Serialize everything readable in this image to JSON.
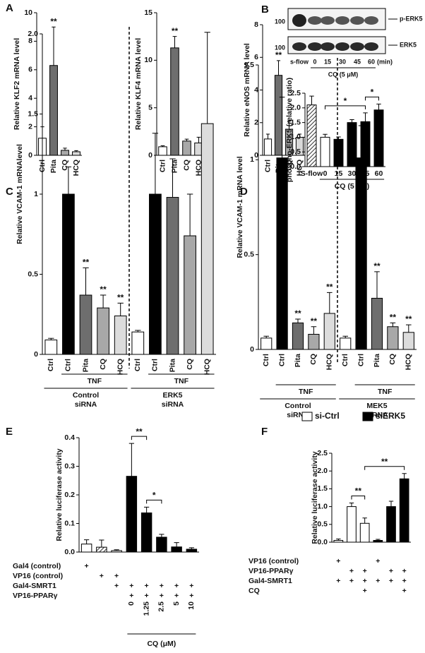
{
  "chart_data": [
    {
      "type": "bar",
      "panel": "A",
      "ylabel": "Relative KLF2 mRNA level",
      "categories": [
        "Ctrl",
        "Pita",
        "CQ",
        "HCQ"
      ],
      "values": [
        1.2,
        6.3,
        0.35,
        0.25
      ],
      "errors": [
        0.8,
        2.7,
        0.15,
        0.08
      ],
      "colors": [
        "#ffffff",
        "#6e6e6e",
        "#a8a8a8",
        "#d9d9d9"
      ],
      "stars": [
        null,
        "**",
        null,
        null
      ],
      "ylim": [
        0,
        10
      ],
      "yticks": [
        0,
        2,
        4,
        6,
        8,
        10
      ]
    },
    {
      "type": "bar",
      "ylabel": "Relative KLF4 mRNA  level",
      "categories": [
        "Ctrl",
        "Pita",
        "CQ",
        "HCQ"
      ],
      "values": [
        0.9,
        11.3,
        1.5,
        1.3
      ],
      "errors": [
        0.1,
        1.2,
        0.2,
        0.6
      ],
      "colors": [
        "#ffffff",
        "#6e6e6e",
        "#a8a8a8",
        "#d9d9d9"
      ],
      "stars": [
        null,
        "**",
        null,
        null
      ],
      "ylim": [
        0,
        15
      ],
      "yticks": [
        0,
        5,
        10,
        15
      ]
    },
    {
      "type": "bar",
      "ylabel": "Relative eNOS mRNA  level",
      "categories": [
        "Ctrl",
        "Pita",
        "CQ",
        "HCQ"
      ],
      "values": [
        1.0,
        4.9,
        1.6,
        1.1
      ],
      "errors": [
        0.3,
        0.9,
        0.5,
        0.2
      ],
      "colors": [
        "#ffffff",
        "#6e6e6e",
        "#a8a8a8",
        "#d9d9d9"
      ],
      "stars": [
        null,
        "**",
        null,
        null
      ],
      "ylim": [
        0,
        8
      ],
      "yticks": [
        0,
        2,
        4,
        6,
        8
      ]
    },
    {
      "type": "bar",
      "panel": "B",
      "ylabel": "phospho-ERK5 (relative ratio)",
      "categories": [
        "S-flow",
        "0",
        "15",
        "30",
        "45",
        "60"
      ],
      "values": [
        2.1,
        1.0,
        0.93,
        1.5,
        1.53,
        1.93
      ],
      "errors": [
        0.3,
        0.1,
        0.08,
        0.1,
        0.3,
        0.2
      ],
      "colors": [
        "#ffffff",
        "#ffffff",
        "#000000",
        "#000000",
        "#000000",
        "#000000"
      ],
      "hatched": [
        0
      ],
      "ylim": [
        0,
        2.5
      ],
      "yticks": [
        {
          "value": 0,
          "label": "0.0"
        },
        0.5,
        {
          "value": 1,
          "label": "1.0"
        },
        1.5,
        {
          "value": 2,
          "label": "2.0"
        },
        2.5
      ],
      "brackets": [
        {
          "from": 1,
          "to": 4,
          "label": "*"
        },
        {
          "from": 4,
          "to": 5,
          "label": "*"
        }
      ],
      "groups": [
        {
          "text": [
            "CQ (5 μM)"
          ],
          "from": 1,
          "to": 5,
          "level": 0
        }
      ],
      "blot": {
        "bands": [
          "p-ERK5",
          "ERK5"
        ],
        "markers": [
          "100",
          "100"
        ],
        "lanes": [
          "s-flow",
          "0",
          "15",
          "30",
          "45",
          "60",
          "(min)"
        ],
        "treatment": "CQ (5 μM)"
      }
    },
    {
      "type": "bar",
      "panel": "C",
      "ylabel": "Relative VCAM-1 mRNAlevel",
      "categories": [
        "Ctrl",
        "Ctrl",
        "Pita",
        "CQ",
        "HCQ",
        "Ctrl",
        "Ctrl",
        "Pita",
        "CQ",
        "HCQ"
      ],
      "values": [
        0.09,
        1.0,
        0.37,
        0.29,
        0.24,
        0.14,
        1.0,
        0.98,
        0.74,
        1.44
      ],
      "errors": [
        0.01,
        0.17,
        0.17,
        0.08,
        0.08,
        0.01,
        0.38,
        0.24,
        0.26,
        0.57
      ],
      "colors": [
        "#ffffff",
        "#000000",
        "#6e6e6e",
        "#a8a8a8",
        "#dcdcdc",
        "#ffffff",
        "#000000",
        "#6e6e6e",
        "#a8a8a8",
        "#dcdcdc"
      ],
      "stars": [
        null,
        null,
        "**",
        "**",
        "**",
        null,
        null,
        null,
        null,
        null
      ],
      "ylim": [
        0,
        2
      ],
      "yticks": [
        0,
        0.5,
        1,
        1.5,
        {
          "value": 2,
          "label": "2.0"
        }
      ],
      "groups": [
        {
          "text": [
            "TNF"
          ],
          "from": 1,
          "to": 4,
          "level": 0
        },
        {
          "text": [
            "Control",
            "siRNA"
          ],
          "from": 0,
          "to": 4,
          "level": 1
        },
        {
          "text": [
            "TNF"
          ],
          "from": 6,
          "to": 9,
          "level": 0
        },
        {
          "text": [
            "ERK5",
            "siRNA"
          ],
          "from": 5,
          "to": 9,
          "level": 1
        }
      ]
    },
    {
      "type": "bar",
      "panel": "D",
      "ylabel": "Relative VCAM-1 mRNA level",
      "categories": [
        "Ctrl",
        "Ctrl",
        "Pita",
        "CQ",
        "HCQ",
        "Ctrl",
        "Ctrl",
        "Pita",
        "CQ",
        "HCQ"
      ],
      "values": [
        0.06,
        1.01,
        0.14,
        0.08,
        0.19,
        0.06,
        1.01,
        0.27,
        0.12,
        0.09
      ],
      "errors": [
        0.01,
        0.32,
        0.02,
        0.04,
        0.11,
        0.01,
        0.17,
        0.14,
        0.02,
        0.04
      ],
      "colors": [
        "#ffffff",
        "#000000",
        "#6e6e6e",
        "#a8a8a8",
        "#dcdcdc",
        "#ffffff",
        "#000000",
        "#6e6e6e",
        "#a8a8a8",
        "#dcdcdc"
      ],
      "stars": [
        null,
        null,
        "**",
        "**",
        "**",
        null,
        null,
        "**",
        "**",
        "**"
      ],
      "ylim": [
        0,
        1.5
      ],
      "yticks": [
        0,
        0.5,
        1,
        1.5
      ],
      "groups": [
        {
          "text": [
            "TNF"
          ],
          "from": 1,
          "to": 4,
          "level": 0
        },
        {
          "text": [
            "Control",
            "siRNA"
          ],
          "from": 0,
          "to": 4,
          "level": 1
        },
        {
          "text": [
            "TNF"
          ],
          "from": 6,
          "to": 9,
          "level": 0
        },
        {
          "text": [
            "MEK5",
            "siRNA"
          ],
          "from": 5,
          "to": 9,
          "level": 1
        }
      ]
    },
    {
      "type": "bar",
      "panel": "E",
      "ylabel": "Relative luciferase activity",
      "values": [
        0.028,
        0.017,
        0.005,
        0.265,
        0.137,
        0.052,
        0.018,
        0.01
      ],
      "errors": [
        0.015,
        0.025,
        0.003,
        0.115,
        0.02,
        0.01,
        0.015,
        0.005
      ],
      "colors": [
        "#ffffff",
        "#ffffff",
        "#ffffff",
        "#000000",
        "#000000",
        "#000000",
        "#000000",
        "#000000"
      ],
      "hatched": [
        1
      ],
      "ylim": [
        0,
        0.4
      ],
      "yticks": [
        {
          "value": 0,
          "label": "0.0"
        },
        0.1,
        0.2,
        0.3,
        0.4
      ],
      "brackets": [
        {
          "from": 3,
          "to": 4,
          "label": "**"
        },
        {
          "from": 4,
          "to": 5,
          "label": "*"
        }
      ],
      "conditions": [
        {
          "label": "Gal4 (control)",
          "marks": [
            "+",
            null,
            null,
            null,
            null,
            null,
            null,
            null
          ]
        },
        {
          "label": "VP16 (control)",
          "marks": [
            null,
            "+",
            "+",
            null,
            null,
            null,
            null,
            null
          ]
        },
        {
          "label": "Gal4-SMRT1",
          "marks": [
            null,
            null,
            "+",
            "+",
            "+",
            "+",
            "+",
            "+"
          ]
        },
        {
          "label": "VP16-PPARγ",
          "marks": [
            null,
            null,
            null,
            "+",
            "+",
            "+",
            "+",
            "+"
          ]
        }
      ],
      "doses": [
        null,
        null,
        null,
        "0",
        "1.25",
        "2.5",
        "5",
        "10"
      ],
      "dose_label": "CQ (μM)"
    },
    {
      "type": "bar",
      "panel": "F",
      "ylabel": "Relative luciferase activity",
      "series": [
        {
          "name": "si-Ctrl",
          "color": "#ffffff",
          "values": [
            0.05,
            1.0,
            0.53
          ],
          "errors": [
            0.04,
            0.1,
            0.15
          ]
        },
        {
          "name": "siERK5",
          "color": "#000000",
          "values": [
            0.05,
            1.0,
            1.78
          ],
          "errors": [
            0.03,
            0.15,
            0.15
          ]
        }
      ],
      "ylim": [
        0,
        2.5
      ],
      "yticks": [
        {
          "value": 0,
          "label": "0.0"
        },
        0.5,
        {
          "value": 1,
          "label": "1.0"
        },
        1.5,
        {
          "value": 2,
          "label": "2.0"
        },
        2.5
      ],
      "brackets": [
        {
          "from": 1,
          "to": 2,
          "label": "**"
        },
        {
          "from": 2,
          "to": 5,
          "label": "**"
        }
      ],
      "conditions": [
        {
          "label": "VP16 (control)",
          "marks": [
            "+",
            null,
            null,
            "+",
            null,
            null
          ]
        },
        {
          "label": "VP16-PPARγ",
          "marks": [
            null,
            "+",
            "+",
            null,
            "+",
            "+"
          ]
        },
        {
          "label": "Gal4-SMRT1",
          "marks": [
            "+",
            "+",
            "+",
            "+",
            "+",
            "+"
          ]
        },
        {
          "label": "CQ",
          "marks": [
            null,
            null,
            "+",
            null,
            null,
            "+"
          ]
        }
      ]
    }
  ]
}
